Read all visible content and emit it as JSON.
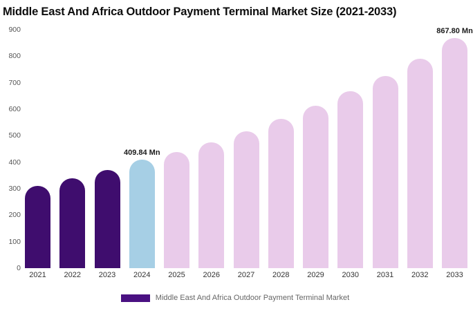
{
  "chart_data": {
    "type": "bar",
    "title": "Middle East And Africa Outdoor Payment Terminal Market Size (2021-2033)",
    "categories": [
      "2021",
      "2022",
      "2023",
      "2024",
      "2025",
      "2026",
      "2027",
      "2028",
      "2029",
      "2030",
      "2031",
      "2032",
      "2033"
    ],
    "values": [
      310,
      338,
      370,
      409.84,
      437,
      475,
      517,
      563,
      613,
      667,
      726,
      790,
      867.8
    ],
    "bar_colors": [
      "#3f0d6e",
      "#3f0d6e",
      "#3f0d6e",
      "#a6cfe5",
      "#e9cbea",
      "#e9cbea",
      "#e9cbea",
      "#e9cbea",
      "#e9cbea",
      "#e9cbea",
      "#e9cbea",
      "#e9cbea",
      "#e9cbea"
    ],
    "annotations": [
      {
        "index": 3,
        "text": "409.84 Mn"
      },
      {
        "index": 12,
        "text": "867.80 Mn"
      }
    ],
    "xlabel": "",
    "ylabel": "",
    "ylim": [
      0,
      900
    ],
    "y_ticks": [
      0,
      100,
      200,
      300,
      400,
      500,
      600,
      700,
      800,
      900
    ],
    "grid": false,
    "legend_position": "bottom"
  },
  "legend": {
    "swatch_color": "#4a1182",
    "label": "Middle East And Africa Outdoor Payment Terminal Market"
  }
}
